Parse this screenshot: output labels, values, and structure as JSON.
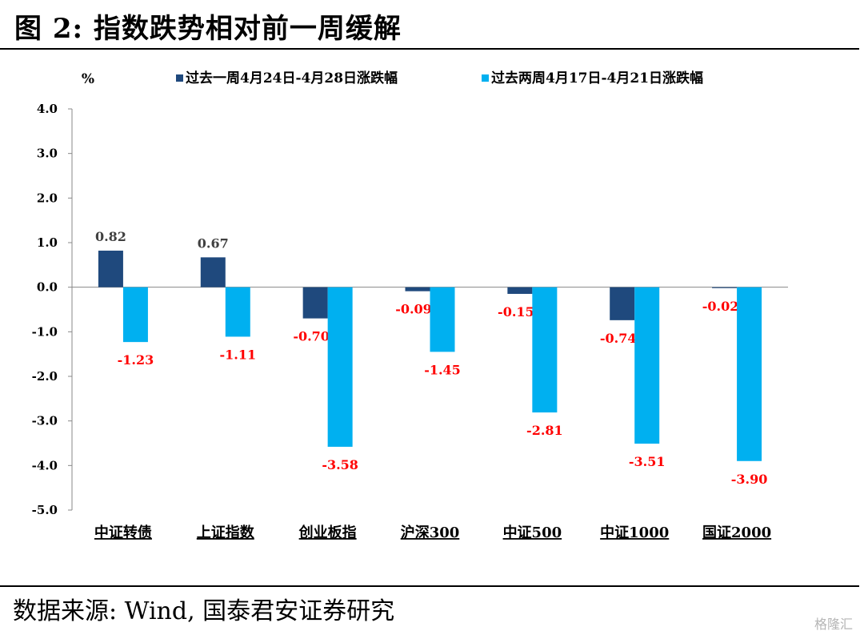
{
  "figure": {
    "title": "图 2:  指数跌势相对前一周缓解",
    "source": "数据来源:  Wind, 国泰君安证券研究",
    "watermark": "格隆汇"
  },
  "chart_data": {
    "type": "bar",
    "unit_label": "%",
    "categories": [
      "中证转债",
      "上证指数",
      "创业板指",
      "沪深300",
      "中证500",
      "中证1000",
      "国证2000"
    ],
    "series": [
      {
        "name": "过去一周4月24日-4月28日涨跌幅",
        "color": "#1f497d",
        "values": [
          0.82,
          0.67,
          -0.7,
          -0.09,
          -0.15,
          -0.74,
          -0.02
        ],
        "labels": [
          "0.82",
          "0.67",
          "-0.70",
          "-0.09",
          "-0.15",
          "-0.74",
          "-0.02"
        ]
      },
      {
        "name": "过去两周4月17日-4月21日涨跌幅",
        "color": "#00b0f0",
        "values": [
          -1.23,
          -1.11,
          -3.58,
          -1.45,
          -2.81,
          -3.51,
          -3.9
        ],
        "labels": [
          "-1.23",
          "-1.11",
          "-3.58",
          "-1.45",
          "-2.81",
          "-3.51",
          "-3.90"
        ]
      }
    ],
    "ylim": [
      -5.0,
      4.0
    ],
    "yticks": [
      "4.0",
      "3.0",
      "2.0",
      "1.0",
      "0.0",
      "-1.0",
      "-2.0",
      "-3.0",
      "-4.0",
      "-5.0"
    ],
    "positive_label_color": "#404040",
    "negative_label_color": "#ff0000",
    "legend_position": "top",
    "grid": false
  }
}
